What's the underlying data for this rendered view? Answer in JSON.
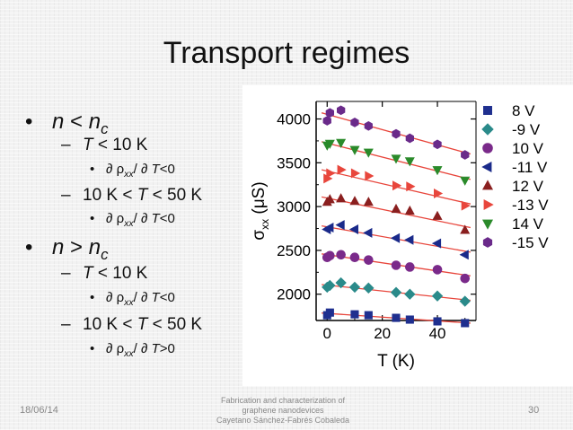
{
  "slide": {
    "title": "Transport regimes",
    "date": "18/06/14",
    "footer_lines": [
      "Fabrication and characterization of",
      "graphene nanodevices",
      "Cayetano Sánchez-Fabrés Cobaleda"
    ],
    "page_number": "30"
  },
  "bullets": [
    {
      "level": 1,
      "bullet": "•",
      "parts": [
        {
          "t": "n",
          "i": true
        },
        {
          "t": " < "
        },
        {
          "t": "n",
          "i": true
        },
        {
          "t": "c",
          "i": true,
          "sub": true
        }
      ]
    },
    {
      "level": 2,
      "bullet": "–",
      "parts": [
        {
          "t": "T",
          "i": true
        },
        {
          "t": " < 10 K"
        }
      ]
    },
    {
      "level": 3,
      "bullet": "•",
      "parts": [
        {
          "t": "∂ ρ"
        },
        {
          "t": "xx",
          "i": true,
          "sub": true
        },
        {
          "t": "/ ∂ "
        },
        {
          "t": "T",
          "i": true
        },
        {
          "t": "<0"
        }
      ]
    },
    {
      "level": 2,
      "bullet": "–",
      "parts": [
        {
          "t": "10 K < "
        },
        {
          "t": "T",
          "i": true
        },
        {
          "t": " < 50 K"
        }
      ]
    },
    {
      "level": 3,
      "bullet": "•",
      "parts": [
        {
          "t": "∂ ρ"
        },
        {
          "t": "xx",
          "i": true,
          "sub": true
        },
        {
          "t": "/ ∂ "
        },
        {
          "t": "T",
          "i": true
        },
        {
          "t": "<0"
        }
      ]
    },
    {
      "level": 1,
      "bullet": "•",
      "parts": [
        {
          "t": "n",
          "i": true
        },
        {
          "t": " > "
        },
        {
          "t": "n",
          "i": true
        },
        {
          "t": "c",
          "i": true,
          "sub": true
        }
      ]
    },
    {
      "level": 2,
      "bullet": "–",
      "parts": [
        {
          "t": "T",
          "i": true
        },
        {
          "t": " < 10 K"
        }
      ]
    },
    {
      "level": 3,
      "bullet": "•",
      "parts": [
        {
          "t": "∂ ρ"
        },
        {
          "t": "xx",
          "i": true,
          "sub": true
        },
        {
          "t": "/ ∂ "
        },
        {
          "t": "T",
          "i": true
        },
        {
          "t": "<0"
        }
      ]
    },
    {
      "level": 2,
      "bullet": "–",
      "parts": [
        {
          "t": "10 K < "
        },
        {
          "t": "T",
          "i": true
        },
        {
          "t": " < 50 K"
        }
      ]
    },
    {
      "level": 3,
      "bullet": "•",
      "parts": [
        {
          "t": "∂ ρ"
        },
        {
          "t": "xx",
          "i": true,
          "sub": true
        },
        {
          "t": "/ ∂ "
        },
        {
          "t": "T",
          "i": true
        },
        {
          "t": ">0"
        }
      ]
    }
  ],
  "chart_data": {
    "type": "scatter",
    "xlabel": "T (K)",
    "ylabel": "σxx (μS)",
    "ylabel_parts": {
      "symbol": "σ",
      "sub": "xx",
      "rest": " (μS)"
    },
    "xlim": [
      -4,
      54
    ],
    "ylim": [
      1700,
      4200
    ],
    "xticks": [
      0,
      20,
      40
    ],
    "yticks": [
      2000,
      2500,
      3000,
      3500,
      4000
    ],
    "fit_line_color": "#e8463c",
    "legend_position": "right",
    "series": [
      {
        "name": "8 V",
        "marker": "square",
        "color": "#1f2f8f",
        "x": [
          0,
          1,
          10,
          15,
          25,
          30,
          40,
          50
        ],
        "y": [
          1760,
          1790,
          1770,
          1760,
          1730,
          1710,
          1690,
          1670
        ],
        "fit": [
          1785,
          1670
        ]
      },
      {
        "name": "-9 V",
        "marker": "diamond",
        "color": "#2a8a8a",
        "x": [
          0,
          1,
          5,
          10,
          15,
          25,
          30,
          40,
          50
        ],
        "y": [
          2080,
          2100,
          2130,
          2080,
          2070,
          2020,
          2000,
          1980,
          1920
        ],
        "fit": [
          2110,
          1930
        ]
      },
      {
        "name": "10 V",
        "marker": "circle",
        "color": "#7a2a8a",
        "x": [
          0,
          1,
          5,
          10,
          15,
          25,
          30,
          40,
          50
        ],
        "y": [
          2420,
          2440,
          2450,
          2420,
          2390,
          2330,
          2310,
          2280,
          2180
        ],
        "fit": [
          2460,
          2210
        ]
      },
      {
        "name": "-11 V",
        "marker": "triangle-left",
        "color": "#1a2a8a",
        "x": [
          0,
          1,
          5,
          10,
          15,
          25,
          30,
          40,
          50
        ],
        "y": [
          2740,
          2760,
          2790,
          2740,
          2700,
          2640,
          2620,
          2580,
          2450
        ],
        "fit": [
          2780,
          2480
        ]
      },
      {
        "name": "12 V",
        "marker": "triangle-up",
        "color": "#8a1f1f",
        "x": [
          0,
          1,
          5,
          10,
          15,
          25,
          30,
          40,
          50
        ],
        "y": [
          3050,
          3080,
          3090,
          3060,
          3050,
          2970,
          2950,
          2890,
          2730
        ],
        "fit": [
          3110,
          2760
        ]
      },
      {
        "name": "-13 V",
        "marker": "triangle-right",
        "color": "#e8463c",
        "x": [
          0,
          1,
          5,
          10,
          15,
          25,
          30,
          40,
          50
        ],
        "y": [
          3320,
          3380,
          3420,
          3380,
          3350,
          3240,
          3230,
          3150,
          3010
        ],
        "fit": [
          3420,
          3030
        ]
      },
      {
        "name": "14 V",
        "marker": "triangle-down",
        "color": "#2a8a2a",
        "x": [
          0,
          1,
          5,
          10,
          15,
          25,
          30,
          40,
          50
        ],
        "y": [
          3700,
          3720,
          3730,
          3650,
          3620,
          3550,
          3520,
          3420,
          3300
        ],
        "fit": [
          3740,
          3310
        ]
      },
      {
        "name": "-15 V",
        "marker": "hexagon",
        "color": "#6a2a8a",
        "x": [
          0,
          1,
          5,
          10,
          15,
          25,
          30,
          40,
          50
        ],
        "y": [
          3980,
          4070,
          4100,
          3960,
          3920,
          3830,
          3780,
          3710,
          3590
        ],
        "fit": [
          4070,
          3600
        ]
      }
    ]
  }
}
